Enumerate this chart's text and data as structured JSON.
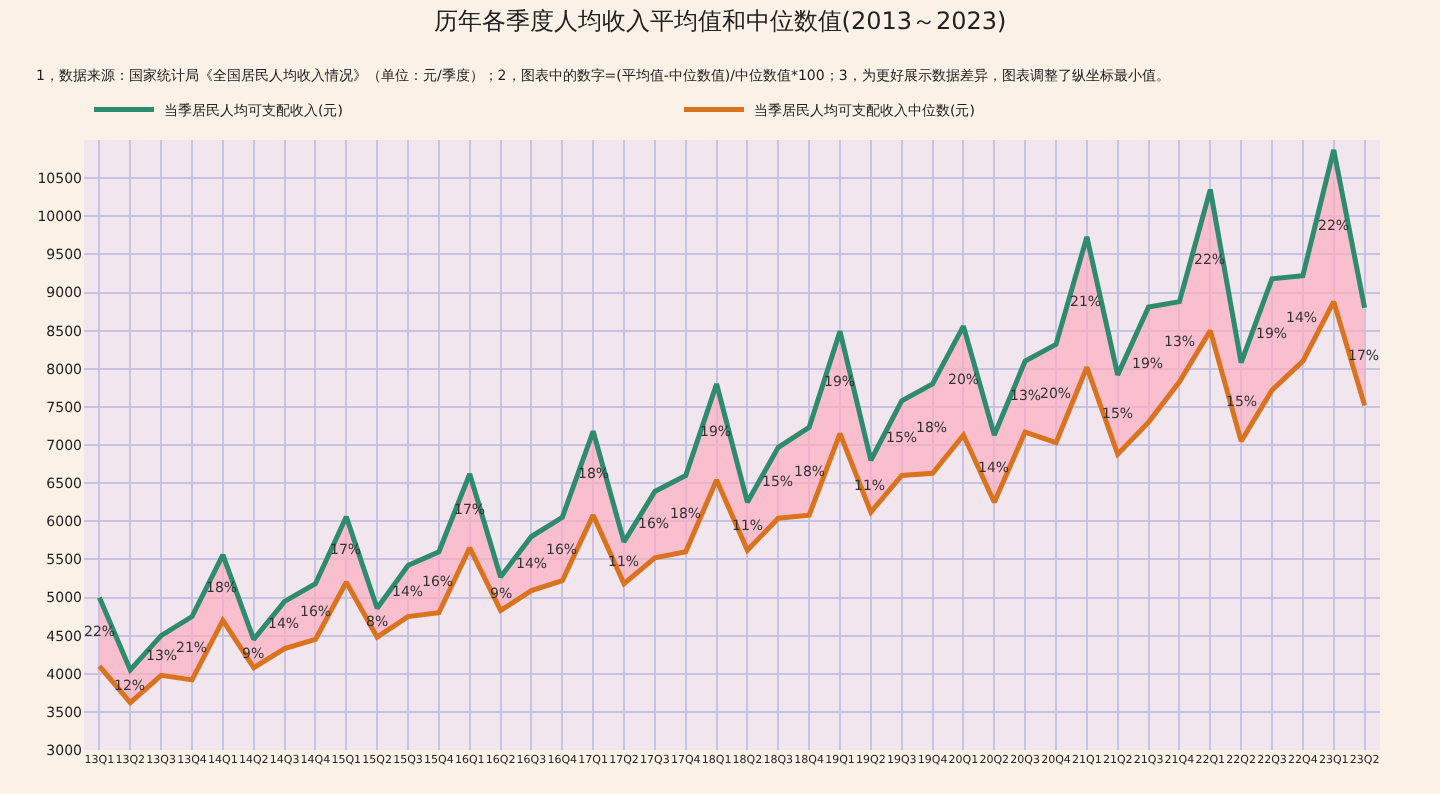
{
  "chart_data": {
    "type": "line",
    "title": "历年各季度人均收入平均值和中位数值(2013～2023)",
    "subtitle": "1，数据来源：国家统计局《全国居民人均收入情况》（单位：元/季度）；2，图表中的数字=(平均值-中位数值)/中位数值*100；3，为更好展示数据差异，图表调整了纵坐标最小值。",
    "categories": [
      "13Q1",
      "13Q2",
      "13Q3",
      "13Q4",
      "14Q1",
      "14Q2",
      "14Q3",
      "14Q4",
      "15Q1",
      "15Q2",
      "15Q3",
      "15Q4",
      "16Q1",
      "16Q2",
      "16Q3",
      "16Q4",
      "17Q1",
      "17Q2",
      "17Q3",
      "17Q4",
      "18Q1",
      "18Q2",
      "18Q3",
      "18Q4",
      "19Q1",
      "19Q2",
      "19Q3",
      "19Q4",
      "20Q1",
      "20Q2",
      "20Q3",
      "20Q4",
      "21Q1",
      "21Q2",
      "21Q3",
      "21Q4",
      "22Q1",
      "22Q2",
      "22Q3",
      "22Q4",
      "23Q1",
      "23Q2"
    ],
    "series": [
      {
        "name": "当季居民人均可支配收入(元)",
        "color": "#2e8b6e",
        "values": [
          5000,
          4050,
          4500,
          4750,
          5560,
          4450,
          4950,
          5180,
          6060,
          4860,
          5420,
          5600,
          6620,
          5270,
          5800,
          6050,
          7180,
          5730,
          6390,
          6600,
          7800,
          6250,
          6970,
          7230,
          8490,
          6800,
          7580,
          7800,
          8560,
          7130,
          8100,
          8320,
          9730,
          7920,
          8810,
          8880,
          10350,
          8080,
          9180,
          9220,
          10870,
          8800
        ],
        "lower": [
          4100,
          3620,
          3980,
          3920,
          4700,
          4080,
          4330,
          4450,
          5200,
          4480,
          4750,
          4800,
          5650,
          4830,
          5090,
          5220,
          6080,
          5180,
          5520,
          5600,
          6540,
          5620,
          6040,
          6080,
          7150,
          6120,
          6600,
          6630,
          7130,
          6250,
          7170,
          7030,
          8020,
          6880,
          7300,
          7830,
          8500,
          7050,
          7720,
          8100,
          8880,
          7520
        ],
        "upper": [
          5000,
          4050,
          4500,
          4750,
          5560,
          4450,
          4950,
          5180,
          6060,
          4860,
          5420,
          5600,
          6620,
          5270,
          5800,
          6050,
          7180,
          5730,
          6390,
          6600,
          7800,
          6250,
          6970,
          7230,
          8490,
          6800,
          7580,
          7800,
          8560,
          7130,
          8100,
          8320,
          9730,
          7920,
          8810,
          8880,
          10350,
          8080,
          9180,
          9220,
          10870,
          8800
        ]
      },
      {
        "name": "当季居民人均可支配收入中位数(元)",
        "color": "#d9731f",
        "values": [
          4100,
          3620,
          3980,
          3920,
          4700,
          4080,
          4330,
          4450,
          5200,
          4480,
          4750,
          4800,
          5650,
          4830,
          5090,
          5220,
          6080,
          5180,
          5520,
          5600,
          6540,
          5620,
          6040,
          6080,
          7150,
          6120,
          6600,
          6630,
          7130,
          6250,
          7170,
          7030,
          8020,
          6880,
          7300,
          7830,
          8500,
          7050,
          7720,
          8100,
          8880,
          7520
        ]
      }
    ],
    "annotations": [
      "22%",
      "12%",
      "13%",
      "21%",
      "18%",
      "9%",
      "14%",
      "16%",
      "17%",
      "8%",
      "14%",
      "16%",
      "17%",
      "9%",
      "14%",
      "16%",
      "18%",
      "11%",
      "16%",
      "18%",
      "19%",
      "11%",
      "15%",
      "18%",
      "19%",
      "11%",
      "15%",
      "18%",
      "20%",
      "14%",
      "13%",
      "20%",
      "21%",
      "15%",
      "19%",
      "13%",
      "22%",
      "15%",
      "19%",
      "14%",
      "22%",
      "17%"
    ],
    "ylim": [
      3000,
      11000
    ],
    "yticks": [
      3000,
      3500,
      4000,
      4500,
      5000,
      5500,
      6000,
      6500,
      7000,
      7500,
      8000,
      8500,
      9000,
      9500,
      10000,
      10500
    ],
    "grid": true,
    "legend": "top",
    "marker": "none",
    "line_style": "solid"
  }
}
